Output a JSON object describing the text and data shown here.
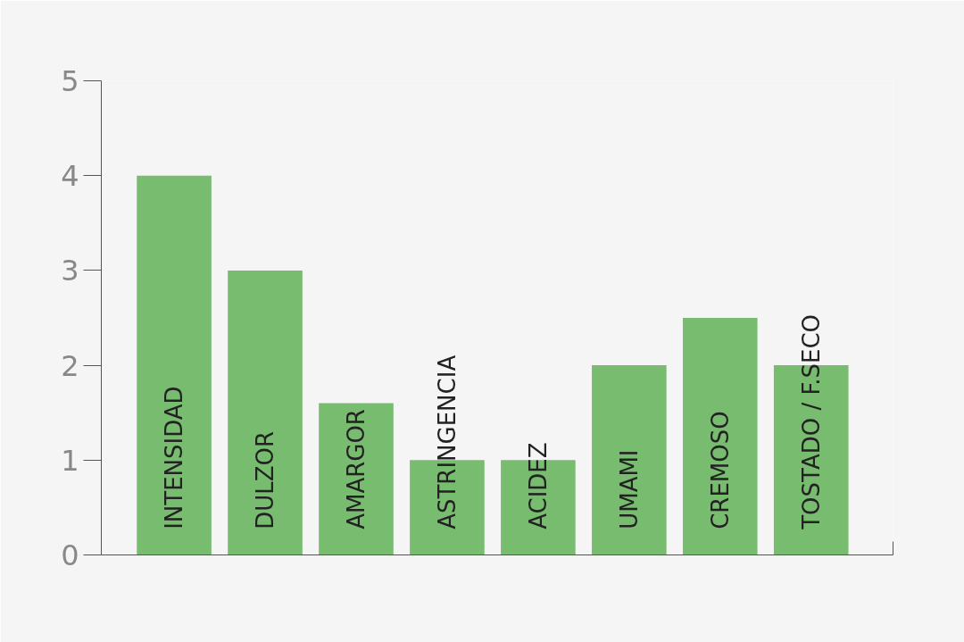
{
  "chart_data": {
    "type": "bar",
    "categories": [
      "INTENSIDAD",
      "DULZOR",
      "AMARGOR",
      "ASTRINGENCIA",
      "ACIDEZ",
      "UMAMI",
      "CREMOSO",
      "TOSTADO / F.SECO"
    ],
    "values": [
      4,
      3,
      1.6,
      1,
      1,
      2,
      2.5,
      2
    ],
    "color": "#77bc6f",
    "ylim": [
      0,
      5
    ],
    "yticks": [
      0,
      1,
      2,
      3,
      4,
      5
    ],
    "grid": false
  }
}
